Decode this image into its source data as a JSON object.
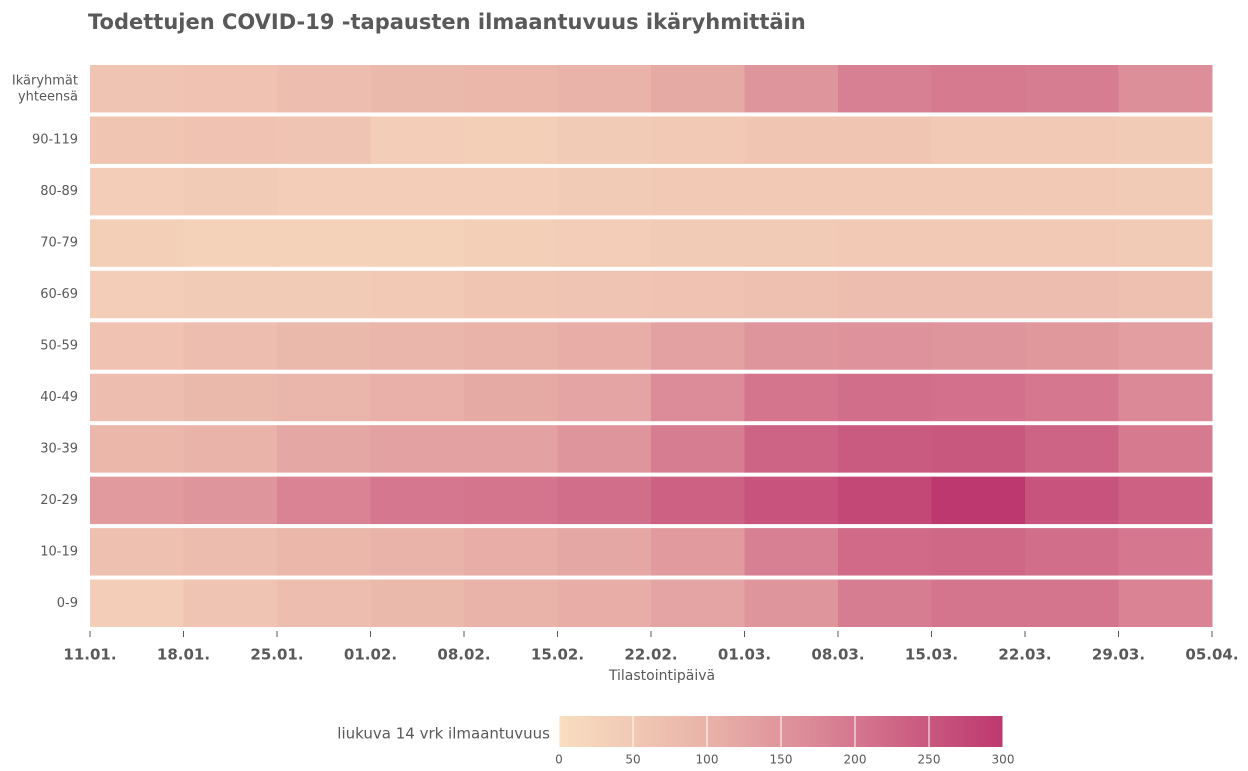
{
  "chart_data": {
    "type": "heatmap",
    "title": "Todettujen COVID-19 -tapausten ilmaantuvuus ikäryhmittäin",
    "x_label": "Tilastointipäivä",
    "bins": [
      "11.01.",
      "18.01.",
      "25.01.",
      "01.02.",
      "08.02.",
      "15.02.",
      "22.02.",
      "01.03.",
      "08.03.",
      "15.03.",
      "22.03.",
      "29.03.",
      "05.04."
    ],
    "rows": [
      {
        "name": "Ikäryhmät yhteensä",
        "values": [
          60,
          65,
          75,
          85,
          90,
          100,
          115,
          150,
          185,
          195,
          190,
          160
        ]
      },
      {
        "name": "90-119",
        "values": [
          55,
          65,
          60,
          40,
          35,
          45,
          50,
          55,
          55,
          50,
          50,
          45
        ]
      },
      {
        "name": "80-89",
        "values": [
          40,
          45,
          40,
          40,
          40,
          45,
          50,
          50,
          50,
          50,
          50,
          45
        ]
      },
      {
        "name": "70-79",
        "values": [
          35,
          30,
          30,
          30,
          35,
          40,
          45,
          45,
          50,
          50,
          50,
          45
        ]
      },
      {
        "name": "60-69",
        "values": [
          40,
          45,
          45,
          50,
          55,
          60,
          65,
          70,
          75,
          75,
          75,
          70
        ]
      },
      {
        "name": "50-59",
        "values": [
          65,
          75,
          85,
          95,
          100,
          110,
          130,
          150,
          155,
          150,
          145,
          135
        ]
      },
      {
        "name": "40-49",
        "values": [
          75,
          85,
          95,
          105,
          115,
          125,
          165,
          205,
          215,
          210,
          200,
          170
        ]
      },
      {
        "name": "30-39",
        "values": [
          90,
          100,
          120,
          130,
          130,
          150,
          190,
          230,
          245,
          250,
          230,
          195
        ]
      },
      {
        "name": "20-29",
        "values": [
          140,
          150,
          180,
          200,
          205,
          215,
          235,
          255,
          275,
          300,
          255,
          235
        ]
      },
      {
        "name": "10-19",
        "values": [
          70,
          80,
          90,
          100,
          110,
          120,
          140,
          185,
          220,
          225,
          215,
          200
        ]
      },
      {
        "name": "0-9",
        "values": [
          40,
          60,
          75,
          85,
          100,
          110,
          125,
          150,
          190,
          205,
          205,
          180
        ]
      }
    ],
    "colorbar_title": "liukuva 14 vrk ilmaantuvuus",
    "zlim": [
      0,
      300
    ],
    "zticks": [
      0,
      50,
      100,
      150,
      200,
      250,
      300
    ],
    "colorscale": [
      "#f9dec0",
      "#e9b3a9",
      "#d5778f",
      "#bd386e"
    ]
  }
}
